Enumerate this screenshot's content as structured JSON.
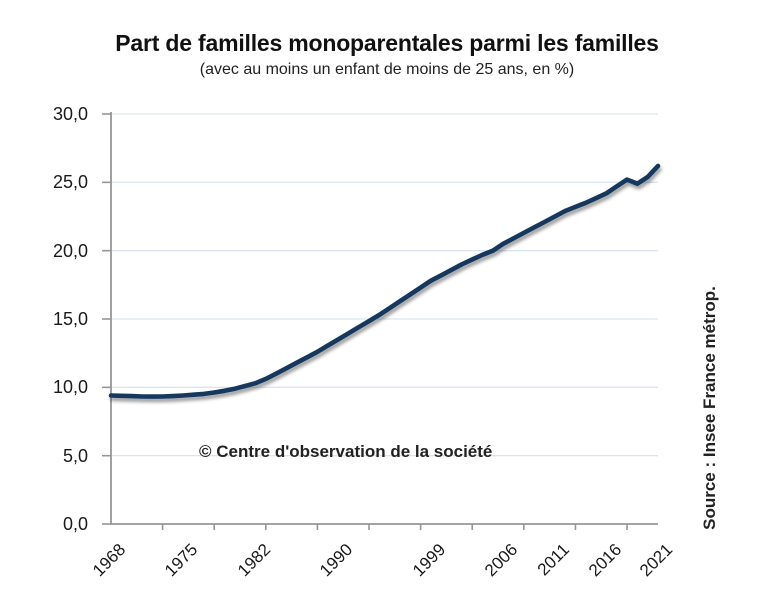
{
  "chart_data": {
    "type": "line",
    "title": "Part de familles monoparentales parmi les familles",
    "subtitle": "(avec au moins un enfant de moins de 25 ans, en %)",
    "annotation": "© Centre d'observation de la société",
    "source_note": "Source : Insee France métrop.",
    "xlim": [
      1968,
      2021
    ],
    "ylim": [
      0,
      30
    ],
    "grid": true,
    "legend": "none",
    "x_tick_labels": [
      "1968",
      "1975",
      "1982",
      "1990",
      "1999",
      "2006",
      "2011",
      "2016",
      "2021"
    ],
    "y_ticks": [
      {
        "label": "0,0",
        "value": 0
      },
      {
        "label": "5,0",
        "value": 5
      },
      {
        "label": "10,0",
        "value": 10
      },
      {
        "label": "15,0",
        "value": 15
      },
      {
        "label": "20,0",
        "value": 20
      },
      {
        "label": "25,0",
        "value": 25
      },
      {
        "label": "30,0",
        "value": 30
      }
    ],
    "x": [
      1968,
      1969,
      1970,
      1971,
      1972,
      1973,
      1974,
      1975,
      1976,
      1977,
      1978,
      1979,
      1980,
      1981,
      1982,
      1983,
      1984,
      1985,
      1986,
      1987,
      1988,
      1989,
      1990,
      1991,
      1992,
      1993,
      1994,
      1995,
      1996,
      1997,
      1998,
      1999,
      2000,
      2001,
      2002,
      2003,
      2004,
      2005,
      2006,
      2007,
      2008,
      2009,
      2010,
      2011,
      2012,
      2013,
      2014,
      2015,
      2016,
      2017,
      2018,
      2019,
      2020,
      2021
    ],
    "values": [
      9.4,
      9.38,
      9.36,
      9.33,
      9.32,
      9.33,
      9.36,
      9.4,
      9.46,
      9.52,
      9.62,
      9.75,
      9.9,
      10.1,
      10.3,
      10.62,
      11.0,
      11.4,
      11.8,
      12.2,
      12.6,
      13.05,
      13.5,
      13.95,
      14.4,
      14.85,
      15.3,
      15.8,
      16.3,
      16.8,
      17.3,
      17.8,
      18.2,
      18.6,
      19.0,
      19.35,
      19.7,
      20.0,
      20.5,
      20.9,
      21.3,
      21.7,
      22.1,
      22.5,
      22.9,
      23.2,
      23.5,
      23.85,
      24.2,
      24.7,
      25.2,
      24.9,
      25.4,
      26.2
    ],
    "colors": {
      "line": "#17375e",
      "gridline": "#dbe5f2",
      "axis": "#969696",
      "text": "#1a1a1a"
    }
  }
}
